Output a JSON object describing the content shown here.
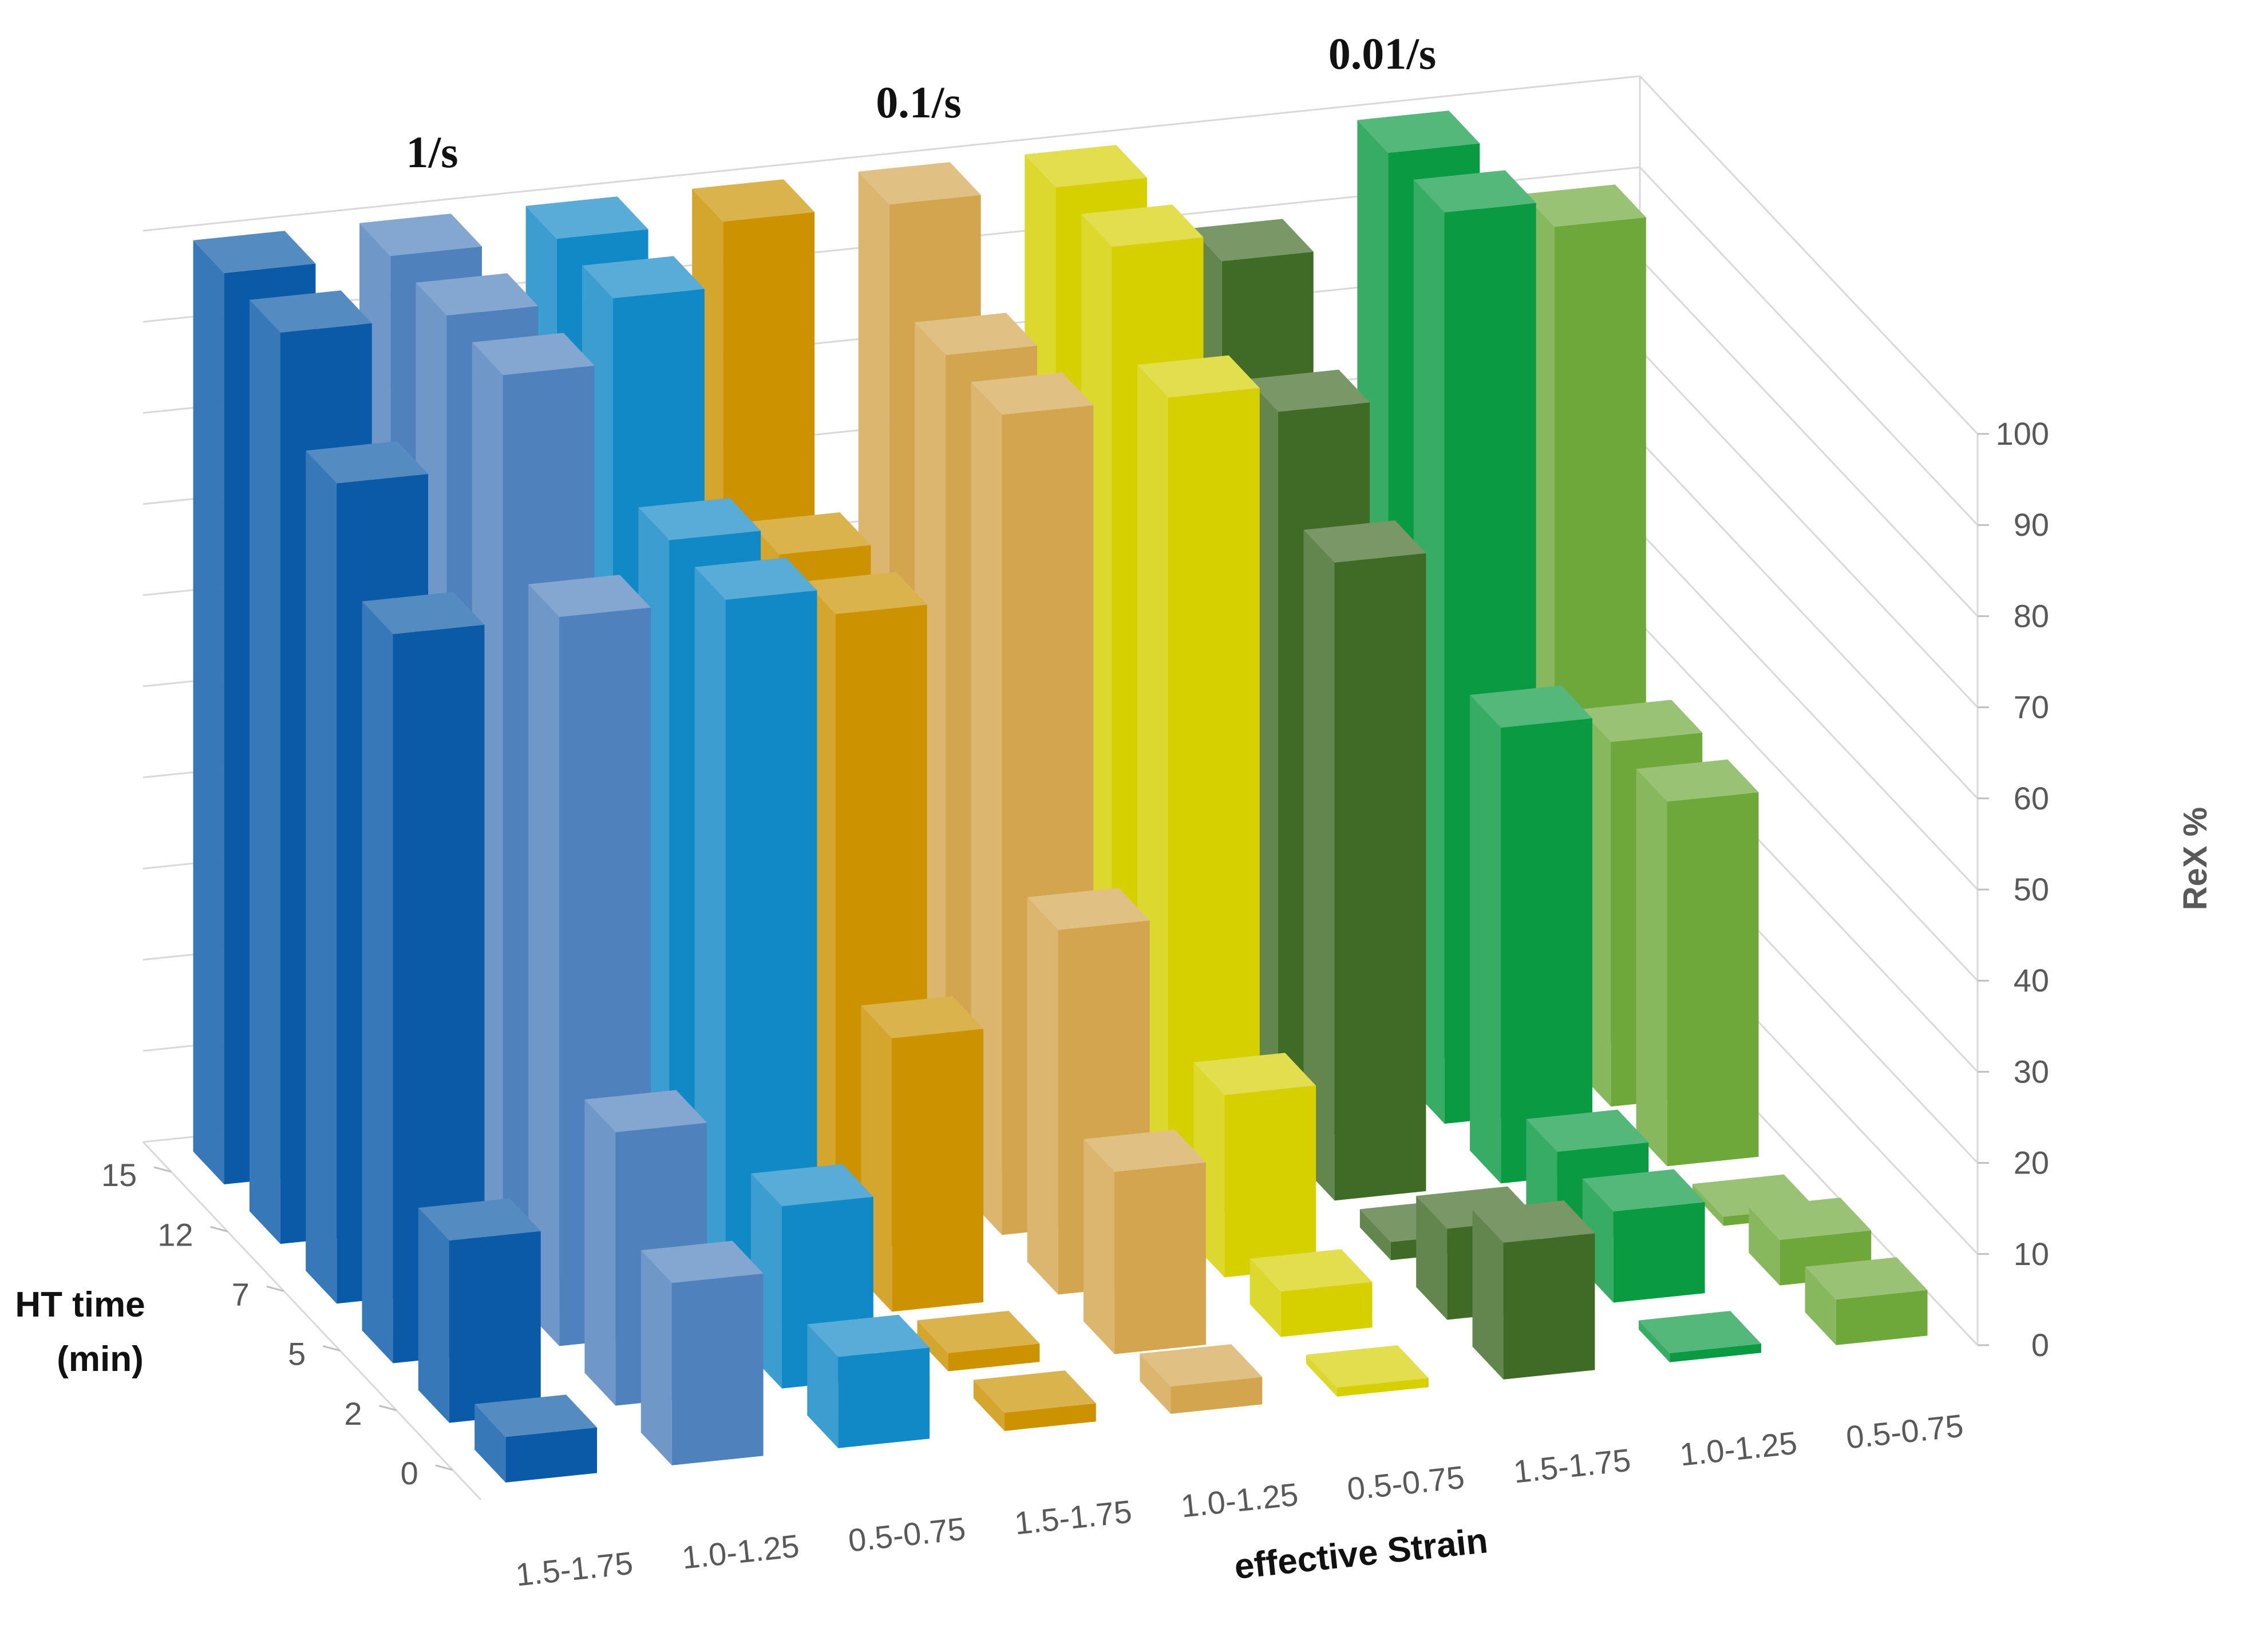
{
  "chart_data": {
    "type": "bar",
    "subtype": "3d-column",
    "title": "",
    "group_titles": [
      "1/s",
      "0.1/s",
      "0.01/s"
    ],
    "x_categories": [
      "1.5-1.75",
      "1.0-1.25",
      "0.5-0.75",
      "1.5-1.75",
      "1.0-1.25",
      "0.5-0.75",
      "1.5-1.75",
      "1.0-1.25",
      "0.5-0.75"
    ],
    "z_categories": [
      "15",
      "12",
      "7",
      "5",
      "2",
      "0"
    ],
    "xlabel": "effective Strain",
    "zlabel_line1": "HT time",
    "zlabel_line2": "(min)",
    "ylabel": "ReX %",
    "ylim": [
      0,
      100
    ],
    "yticks": [
      "0",
      "10",
      "20",
      "30",
      "40",
      "50",
      "60",
      "70",
      "80",
      "90",
      "100"
    ],
    "grid": true,
    "series": [
      {
        "color": "#0a5aa8",
        "values": [
          100,
          100,
          90,
          80,
          20,
          5
        ]
      },
      {
        "color": "#4f81bd",
        "values": [
          100,
          100,
          100,
          80,
          30,
          20
        ]
      },
      {
        "color": "#1189c6",
        "values": [
          100,
          100,
          80,
          80,
          20,
          10
        ]
      },
      {
        "color": "#cc9200",
        "values": [
          100,
          70,
          70,
          30,
          2,
          2
        ]
      },
      {
        "color": "#d4a54f",
        "values": [
          100,
          90,
          90,
          40,
          20,
          3
        ]
      },
      {
        "color": "#d6d000",
        "values": [
          100,
          100,
          90,
          20,
          5,
          1
        ]
      },
      {
        "color": "#3f6b26",
        "values": [
          90,
          80,
          70,
          2,
          10,
          15
        ]
      },
      {
        "color": "#0a9a42",
        "values": [
          100,
          100,
          50,
          10,
          10,
          1
        ]
      },
      {
        "color": "#6ea83a",
        "values": [
          90,
          40,
          40,
          1,
          5,
          5
        ]
      }
    ]
  }
}
